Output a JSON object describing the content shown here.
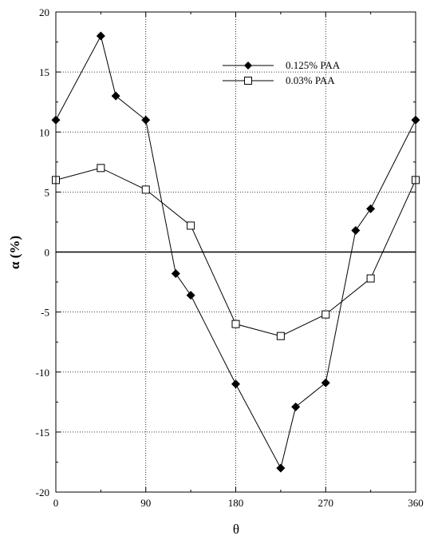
{
  "chart_data": {
    "type": "line",
    "xlabel": "θ",
    "ylabel": "α (%)",
    "xlim": [
      0,
      360
    ],
    "ylim": [
      -20,
      20
    ],
    "xticks": [
      0,
      90,
      180,
      270,
      360
    ],
    "yticks": [
      -20,
      -15,
      -10,
      -5,
      0,
      5,
      10,
      15,
      20
    ],
    "grid": "dotted, at major ticks",
    "zero_line": true,
    "legend_position": "top-right",
    "series": [
      {
        "name": "0.125% PAA",
        "marker": "filled-diamond",
        "color": "#000000",
        "x": [
          0,
          45,
          60,
          90,
          120,
          135,
          180,
          225,
          240,
          270,
          300,
          315,
          360
        ],
        "y": [
          11,
          18,
          13,
          11,
          -1.8,
          -3.6,
          -11,
          -18,
          -12.9,
          -10.9,
          1.8,
          3.6,
          11
        ]
      },
      {
        "name": "0.03% PAA",
        "marker": "open-square",
        "color": "#000000",
        "x": [
          0,
          45,
          90,
          135,
          180,
          225,
          270,
          315,
          360
        ],
        "y": [
          6,
          7,
          5.2,
          2.2,
          -6,
          -7,
          -5.2,
          -2.2,
          6
        ]
      }
    ]
  }
}
